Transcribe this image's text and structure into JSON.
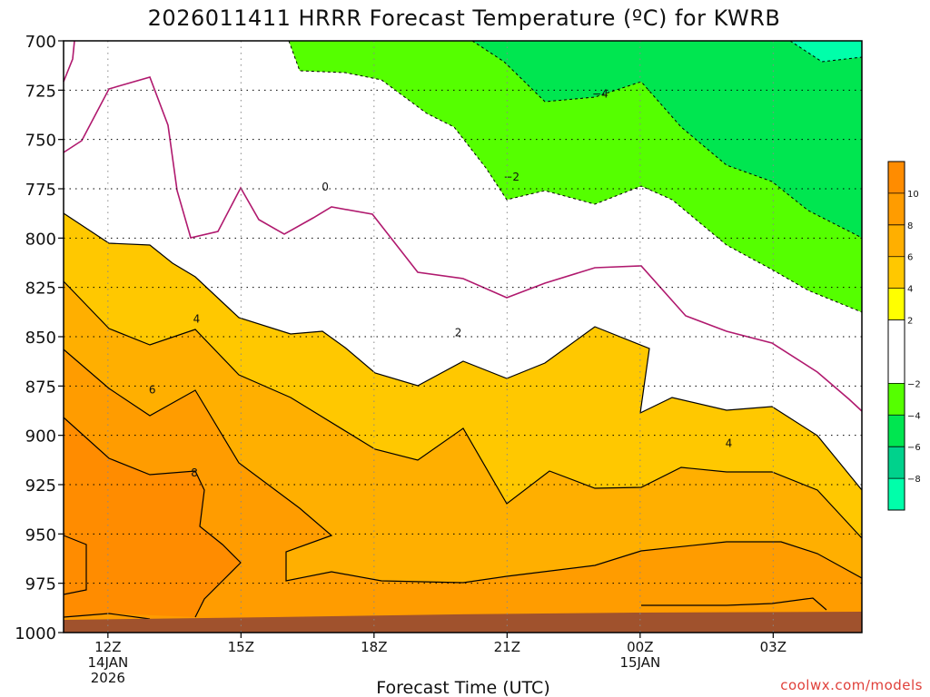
{
  "chart_data": {
    "type": "time-height contour",
    "title": "2026011411 HRRR Forecast Temperature (ºC) for KWRB",
    "xlabel": "Forecast Time (UTC)",
    "ylabel": "",
    "credit": "coolwx.com/models",
    "y_axis": {
      "label": "",
      "ticks": [
        700,
        725,
        750,
        775,
        800,
        825,
        850,
        875,
        900,
        925,
        950,
        975,
        1000
      ],
      "range": [
        1000,
        700
      ]
    },
    "x_axis": {
      "range_hours": [
        11,
        29
      ],
      "ticks": [
        {
          "hour": 12,
          "label": "12Z",
          "sub": [
            "14JAN",
            "2026"
          ]
        },
        {
          "hour": 15,
          "label": "15Z",
          "sub": []
        },
        {
          "hour": 18,
          "label": "18Z",
          "sub": []
        },
        {
          "hour": 21,
          "label": "21Z",
          "sub": []
        },
        {
          "hour": 24,
          "label": "00Z",
          "sub": [
            "15JAN"
          ]
        },
        {
          "hour": 27,
          "label": "03Z",
          "sub": []
        }
      ]
    },
    "grid": true,
    "colorbar": {
      "ticks": [
        10,
        8,
        6,
        4,
        2,
        -2,
        -4,
        -6,
        -8
      ],
      "bands": [
        {
          "range": [
            10,
            12
          ],
          "color": "#ff8c00"
        },
        {
          "range": [
            8,
            10
          ],
          "color": "#ff9c00"
        },
        {
          "range": [
            6,
            8
          ],
          "color": "#ffaf00"
        },
        {
          "range": [
            4,
            6
          ],
          "color": "#ffc800"
        },
        {
          "range": [
            2,
            4
          ],
          "color": "#ffff00"
        },
        {
          "range": [
            -2,
            2
          ],
          "color": "#ffffff"
        },
        {
          "range": [
            -4,
            -2
          ],
          "color": "#55ff00"
        },
        {
          "range": [
            -6,
            -4
          ],
          "color": "#00e650"
        },
        {
          "range": [
            -8,
            -6
          ],
          "color": "#00d28c"
        },
        {
          "range": [
            -10,
            -8
          ],
          "color": "#00ffaa"
        }
      ]
    },
    "contour_labels": [
      {
        "text": "0",
        "hour": 16.9,
        "p": 774
      },
      {
        "text": "−2",
        "hour": 21.1,
        "p": 769
      },
      {
        "text": "−4",
        "hour": 23.1,
        "p": 727
      },
      {
        "text": "2",
        "hour": 19.9,
        "p": 848
      },
      {
        "text": "4",
        "hour": 14.0,
        "p": 841
      },
      {
        "text": "4",
        "hour": 26.0,
        "p": 904
      },
      {
        "text": "6",
        "hour": 13.0,
        "p": 877
      },
      {
        "text": "8",
        "hour": 13.95,
        "p": 919
      }
    ],
    "ground_color": "#a0522d"
  }
}
